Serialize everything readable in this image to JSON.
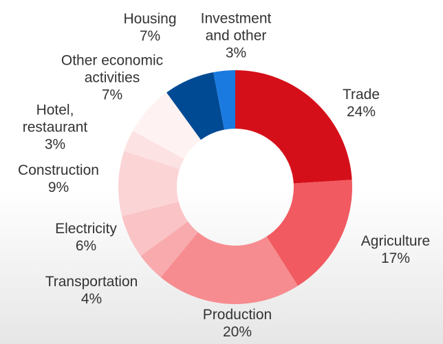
{
  "chart_data": {
    "type": "donut",
    "categories": [
      "Trade",
      "Agriculture",
      "Production",
      "Transportation",
      "Electricity",
      "Construction",
      "Hotel, restaurant",
      "Other economic activities",
      "Housing",
      "Investment and other"
    ],
    "values": [
      24,
      17,
      20,
      4,
      6,
      9,
      3,
      7,
      7,
      3
    ],
    "value_labels": [
      "24%",
      "17%",
      "20%",
      "4%",
      "6%",
      "9%",
      "3%",
      "7%",
      "7%",
      "3%"
    ],
    "colors": [
      "#d50f19",
      "#f05a60",
      "#f78c90",
      "#f8aaac",
      "#fac3c5",
      "#fbd4d6",
      "#fde2e3",
      "#fff2f2",
      "#004a93",
      "#1a7ae0"
    ]
  }
}
